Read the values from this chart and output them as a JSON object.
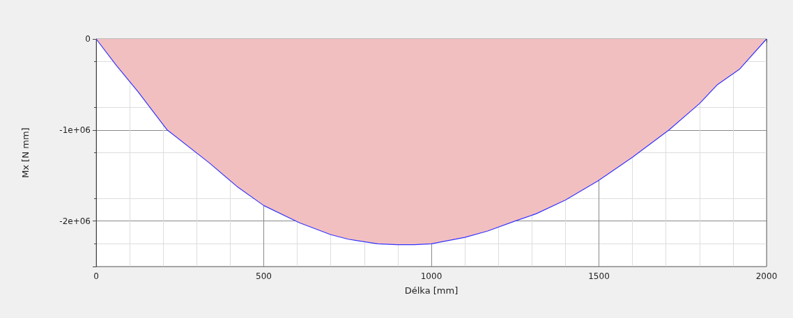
{
  "chart_data": {
    "type": "area",
    "xlabel": "Délka [mm]",
    "ylabel": "Mx [N mm]",
    "x": [
      0,
      60,
      125,
      212,
      337,
      420,
      500,
      607,
      700,
      752,
      840,
      898,
      950,
      1000,
      1100,
      1168,
      1250,
      1313,
      1400,
      1497,
      1600,
      1709,
      1800,
      1854,
      1920,
      2000
    ],
    "series": [
      {
        "color": "#f2bfc1",
        "values": [
          0,
          -290000,
          -580000,
          -1000000,
          -1360000,
          -1620000,
          -1830000,
          -2020000,
          -2150000,
          -2200000,
          -2250000,
          -2260000,
          -2260000,
          -2250000,
          -2180000,
          -2110000,
          -2000000,
          -1920000,
          -1770000,
          -1560000,
          -1300000,
          -1000000,
          -710000,
          -500000,
          -330000,
          0
        ]
      }
    ],
    "xlim": [
      0,
      2000
    ],
    "xticks": [
      0,
      500,
      1000,
      1500,
      2000
    ],
    "ylim": [
      -2500000,
      0
    ],
    "yticks": [
      {
        "value": -2500000,
        "label": null
      },
      {
        "value": -2000000,
        "label": "-2e+06"
      },
      {
        "value": -1000000,
        "label": "-1e+06"
      },
      0
    ],
    "grid": true,
    "marker": "none",
    "line_style": "solid"
  }
}
